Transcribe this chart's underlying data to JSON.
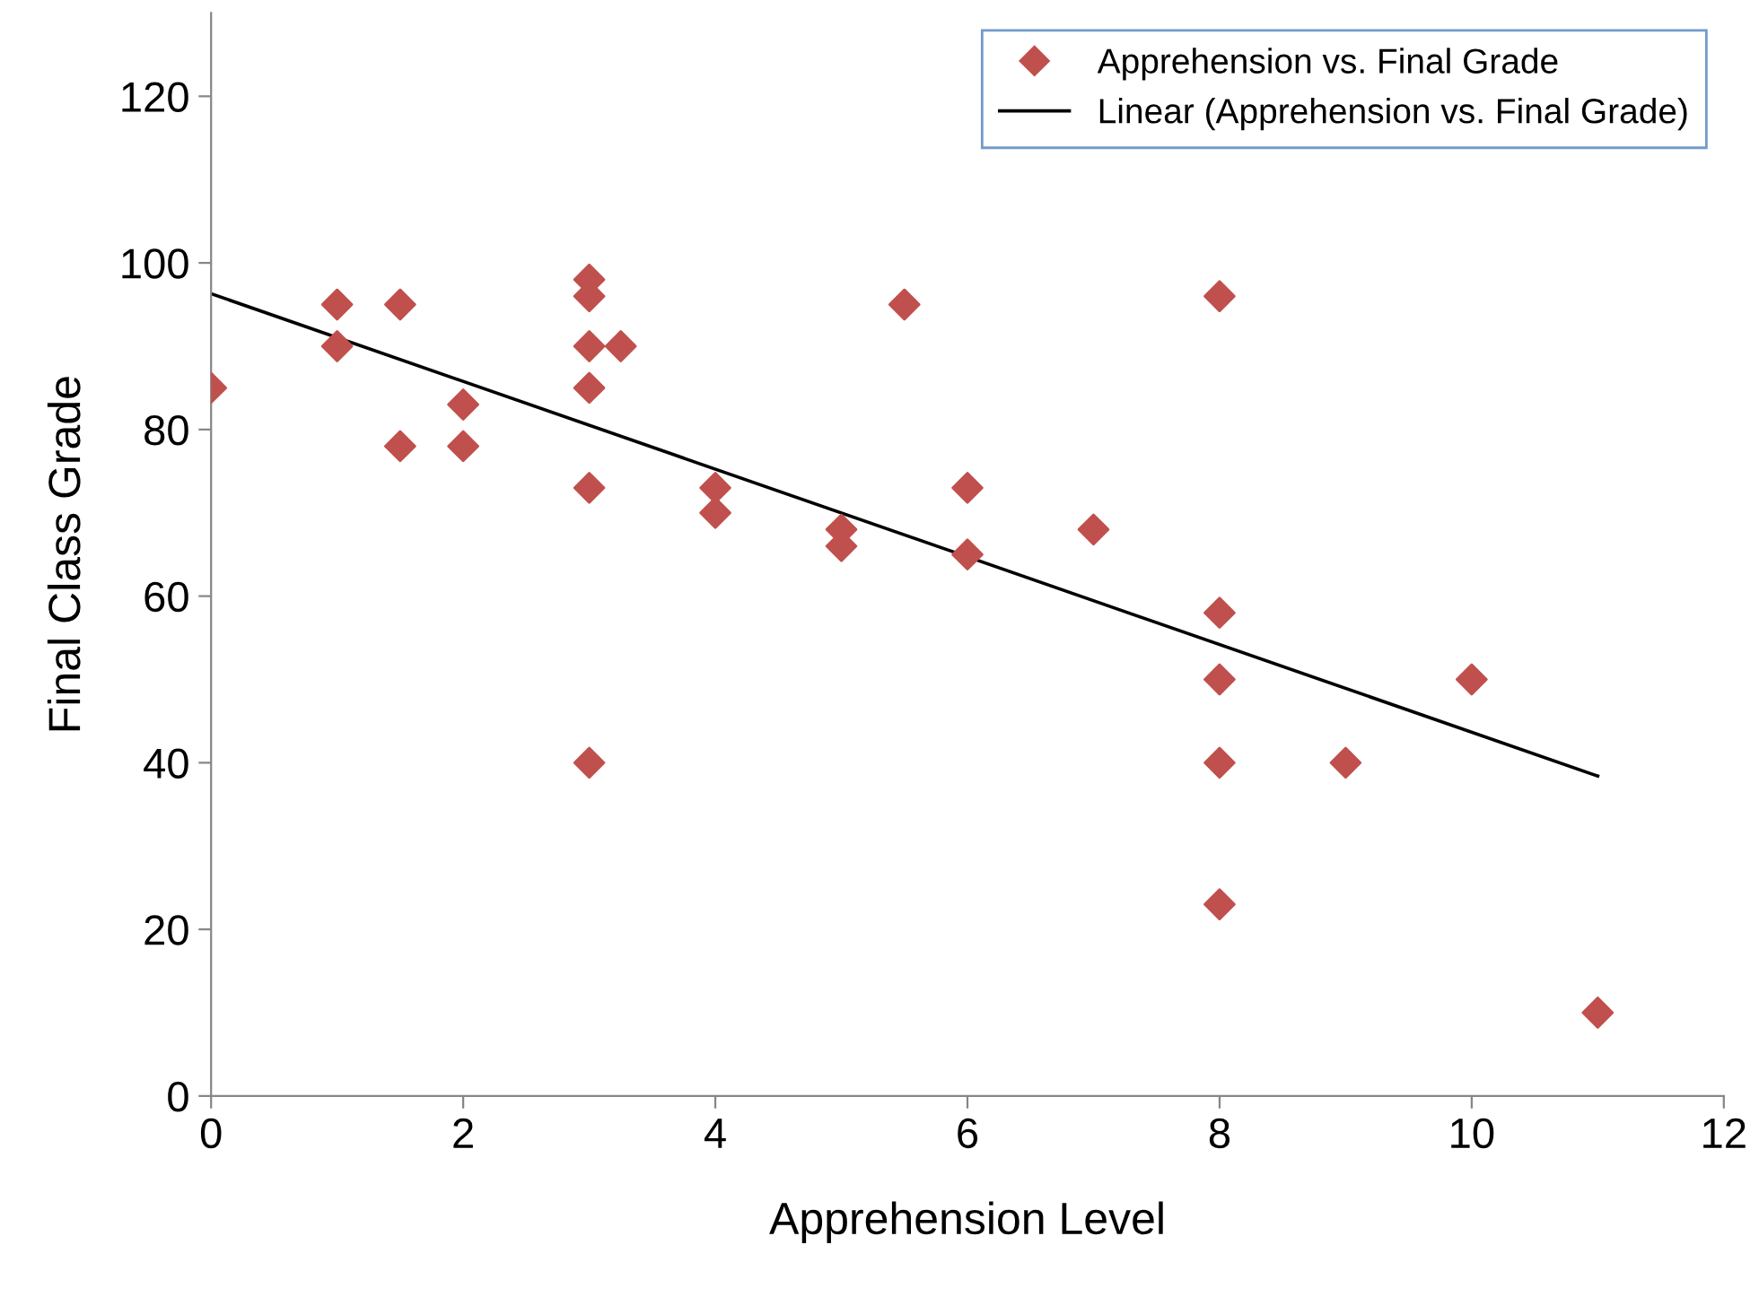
{
  "chart_data": {
    "type": "scatter",
    "xlabel": "Apprehension Level",
    "ylabel": "Final Class Grade",
    "series": [
      {
        "name": "Apprehension vs. Final Grade",
        "color": "#c0504d",
        "marker": "diamond",
        "x": [
          0,
          1,
          1,
          1.5,
          1.5,
          2,
          2,
          3,
          3,
          3,
          3,
          3,
          3,
          3.25,
          4,
          4,
          5,
          5,
          5.5,
          6,
          6,
          7,
          8,
          8,
          8,
          8,
          8,
          9,
          10,
          11
        ],
        "values": [
          85,
          95,
          90,
          95,
          78,
          83,
          78,
          98,
          96,
          90,
          85,
          73,
          40,
          90,
          73,
          70,
          68,
          66,
          95,
          73,
          65,
          68,
          96,
          58,
          50,
          40,
          23,
          40,
          50,
          10
        ]
      },
      {
        "name": "Linear (Apprehension vs. Final Grade)",
        "type": "line",
        "color": "#000000",
        "line_style": "solid",
        "marker": "none",
        "x": [
          0,
          11
        ],
        "values": [
          96.3,
          38.4
        ]
      }
    ],
    "xlim": [
      0,
      12
    ],
    "ylim": [
      0,
      130
    ],
    "xticks": [
      0,
      2,
      4,
      6,
      8,
      10,
      12
    ],
    "yticks": [
      0,
      20,
      40,
      60,
      80,
      100,
      120
    ],
    "grid": false,
    "legend": "top right"
  }
}
